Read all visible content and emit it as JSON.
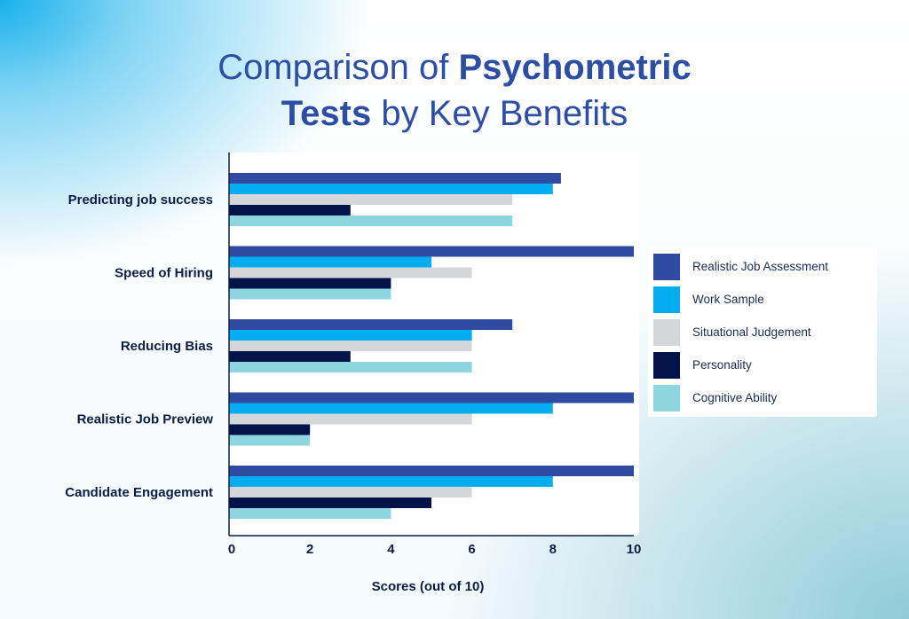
{
  "page": {
    "title_part1": "Comparison of ",
    "title_bold1": "Psychometric",
    "title_bold2": "Tests",
    "title_part2": " by Key Benefits"
  },
  "chart_data": {
    "type": "bar",
    "orientation": "horizontal",
    "title": "Comparison of Psychometric Tests by Key Benefits",
    "xlabel": "Scores (out of 10)",
    "ylabel": "",
    "xlim": [
      0,
      10
    ],
    "xticks": [
      0,
      2,
      4,
      6,
      8,
      10
    ],
    "grid": false,
    "legend_position": "right",
    "categories": [
      "Predicting job success",
      "Speed of Hiring",
      "Reducing Bias",
      "Realistic Job Preview",
      "Candidate Engagement"
    ],
    "series": [
      {
        "name": "Realistic Job Assessment",
        "color": "#2f4ba1",
        "values": [
          8.2,
          10,
          7,
          10,
          10
        ]
      },
      {
        "name": "Work Sample",
        "color": "#03adef",
        "values": [
          8,
          5,
          6,
          8,
          8
        ]
      },
      {
        "name": "Situational Judgement",
        "color": "#d4d6d9",
        "values": [
          7,
          6,
          6,
          6,
          6
        ]
      },
      {
        "name": "Personality",
        "color": "#02134a",
        "values": [
          3,
          4,
          3,
          2,
          5
        ]
      },
      {
        "name": "Cognitive Ability",
        "color": "#8dd6e0",
        "values": [
          7,
          4,
          6,
          2,
          4
        ]
      }
    ]
  }
}
